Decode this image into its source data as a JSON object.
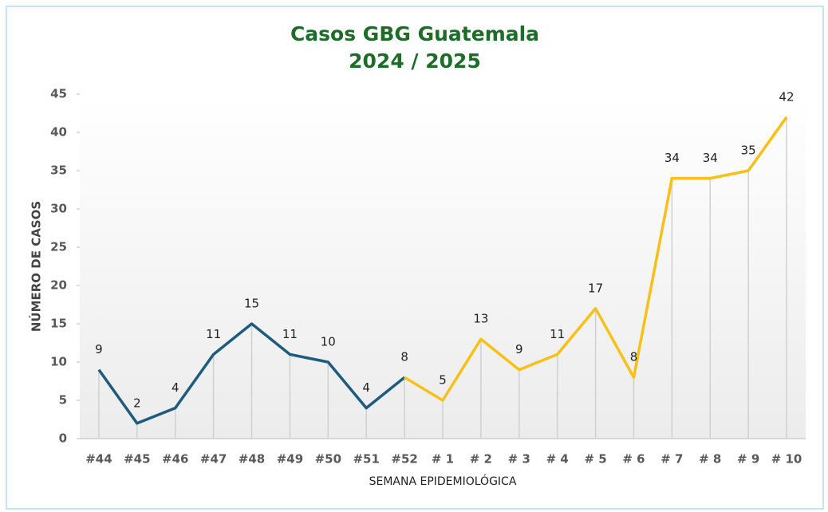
{
  "chart_data": {
    "type": "line",
    "title": "Casos GBG Guatemala",
    "subtitle": "2024 / 2025",
    "x_label": "SEMANA EPIDEMIOLÓGICA",
    "y_label": "NÚMERO DE CASOS",
    "categories": [
      "#44",
      "#45",
      "#46",
      "#47",
      "#48",
      "#49",
      "#50",
      "#51",
      "#52",
      "# 1",
      "# 2",
      "# 3",
      "# 4",
      "# 5",
      "# 6",
      "# 7",
      "# 8",
      "# 9",
      "# 10"
    ],
    "series": [
      {
        "color": "#1f5b7d",
        "values": [
          9,
          2,
          4,
          11,
          15,
          11,
          10,
          4,
          8,
          null,
          null,
          null,
          null,
          null,
          null,
          null,
          null,
          null,
          null
        ]
      },
      {
        "color": "#f9c01a",
        "values": [
          null,
          null,
          null,
          null,
          null,
          null,
          null,
          null,
          8,
          5,
          13,
          9,
          11,
          17,
          8,
          34,
          34,
          35,
          42
        ]
      }
    ],
    "ylim": [
      0,
      45
    ],
    "yticks": [
      0,
      5,
      10,
      15,
      20,
      25,
      30,
      35,
      40,
      45
    ],
    "drop_lines": true
  }
}
